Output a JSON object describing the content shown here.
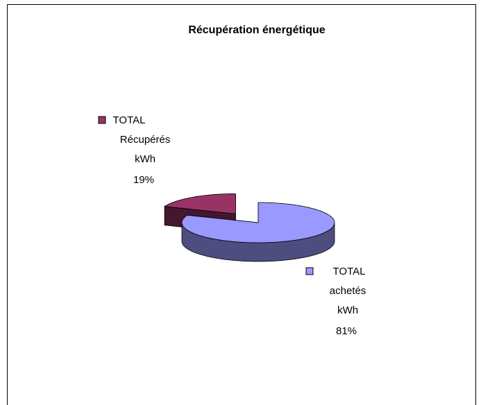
{
  "chart_data": {
    "type": "pie",
    "title": "Récupération énergétique",
    "categories": [
      "TOTAL Récupérés kWh",
      "TOTAL achetés kWh"
    ],
    "values": [
      19,
      81
    ],
    "value_labels": [
      "19%",
      "81%"
    ],
    "colors": [
      "#993366",
      "#9999ff"
    ],
    "three_d": true,
    "exploded": [
      true,
      false
    ]
  }
}
